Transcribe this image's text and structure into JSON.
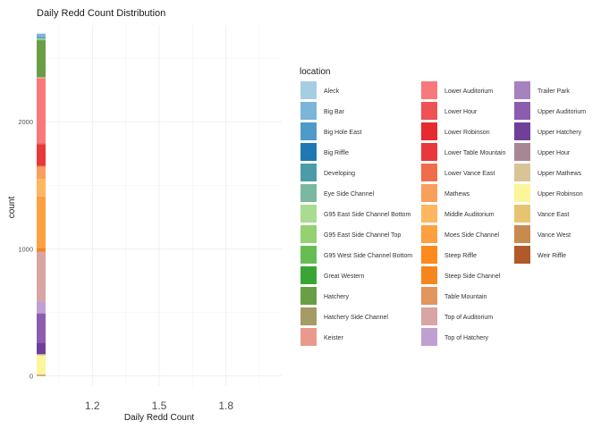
{
  "chart_data": {
    "type": "bar",
    "title": "Daily Redd Count Distribution",
    "xlabel": "Daily Redd Count",
    "ylabel": "count",
    "x_ticks": [
      "1.2",
      "1.5",
      "1.8"
    ],
    "x_tick_values": [
      1.2,
      1.5,
      1.8
    ],
    "xlim": [
      0.95,
      2.05
    ],
    "y_ticks": [
      "0",
      "1000",
      "2000"
    ],
    "y_tick_values": [
      0,
      1000,
      2000
    ],
    "ylim": [
      -80,
      2760
    ],
    "grid": true,
    "legend_title": "location",
    "legend_position": "right",
    "stacked_bin": {
      "x_start": 0.95,
      "x_end": 0.99
    },
    "series": [
      {
        "name": "Aleck",
        "value": 3,
        "color": "#A6CEE3"
      },
      {
        "name": "Big Bar",
        "value": 25,
        "color": "#7CB5D8"
      },
      {
        "name": "Big Hole East",
        "value": 5,
        "color": "#4E9AC8"
      },
      {
        "name": "Big Riffle",
        "value": 3,
        "color": "#1F78B4"
      },
      {
        "name": "Developing",
        "value": 3,
        "color": "#4B9CA8"
      },
      {
        "name": "Eye Side Channel",
        "value": 3,
        "color": "#7BB8A0"
      },
      {
        "name": "G95 East Side Channel Bottom",
        "value": 3,
        "color": "#A9DB91"
      },
      {
        "name": "G95 East Side Channel Top",
        "value": 3,
        "color": "#93D171"
      },
      {
        "name": "G95 West Side Channel Bottom",
        "value": 3,
        "color": "#66BE53"
      },
      {
        "name": "Great Western",
        "value": 3,
        "color": "#3AA535"
      },
      {
        "name": "Hatchery",
        "value": 290,
        "color": "#6A9E46"
      },
      {
        "name": "Hatchery Side Channel",
        "value": 3,
        "color": "#A49B65"
      },
      {
        "name": "Keister",
        "value": 8,
        "color": "#E99A8D"
      },
      {
        "name": "Lower Auditorium",
        "value": 510,
        "color": "#F8797B"
      },
      {
        "name": "Lower Hour",
        "value": 5,
        "color": "#EE5254"
      },
      {
        "name": "Lower Robinson",
        "value": 3,
        "color": "#E52B2E"
      },
      {
        "name": "Lower Table Mountain",
        "value": 170,
        "color": "#E9383A"
      },
      {
        "name": "Lower Vance East",
        "value": 5,
        "color": "#F06D4A"
      },
      {
        "name": "Mathews",
        "value": 95,
        "color": "#FA9E5B"
      },
      {
        "name": "Middle Auditorium",
        "value": 140,
        "color": "#FDB761"
      },
      {
        "name": "Moes Side Channel",
        "value": 400,
        "color": "#FDA03F"
      },
      {
        "name": "Steep Riffle",
        "value": 3,
        "color": "#FE8A1D"
      },
      {
        "name": "Steep Side Channel",
        "value": 30,
        "color": "#F5861F"
      },
      {
        "name": "Table Mountain",
        "value": 3,
        "color": "#E2955D"
      },
      {
        "name": "Top of Auditorium",
        "value": 390,
        "color": "#D8A4A4"
      },
      {
        "name": "Top of Hatchery",
        "value": 90,
        "color": "#C0A0D0"
      },
      {
        "name": "Trailer Park",
        "value": 3,
        "color": "#A682BE"
      },
      {
        "name": "Upper Auditorium",
        "value": 230,
        "color": "#8C5DAF"
      },
      {
        "name": "Upper Hatchery",
        "value": 90,
        "color": "#6F3F99"
      },
      {
        "name": "Upper Hour",
        "value": 3,
        "color": "#A88794"
      },
      {
        "name": "Upper Mathews",
        "value": 8,
        "color": "#D8C497"
      },
      {
        "name": "Upper Robinson",
        "value": 150,
        "color": "#FBF69A"
      },
      {
        "name": "Vance East",
        "value": 3,
        "color": "#E7C570"
      },
      {
        "name": "Vance West",
        "value": 5,
        "color": "#C98A4F"
      },
      {
        "name": "Weir Riffle",
        "value": 3,
        "color": "#B15928"
      }
    ]
  }
}
